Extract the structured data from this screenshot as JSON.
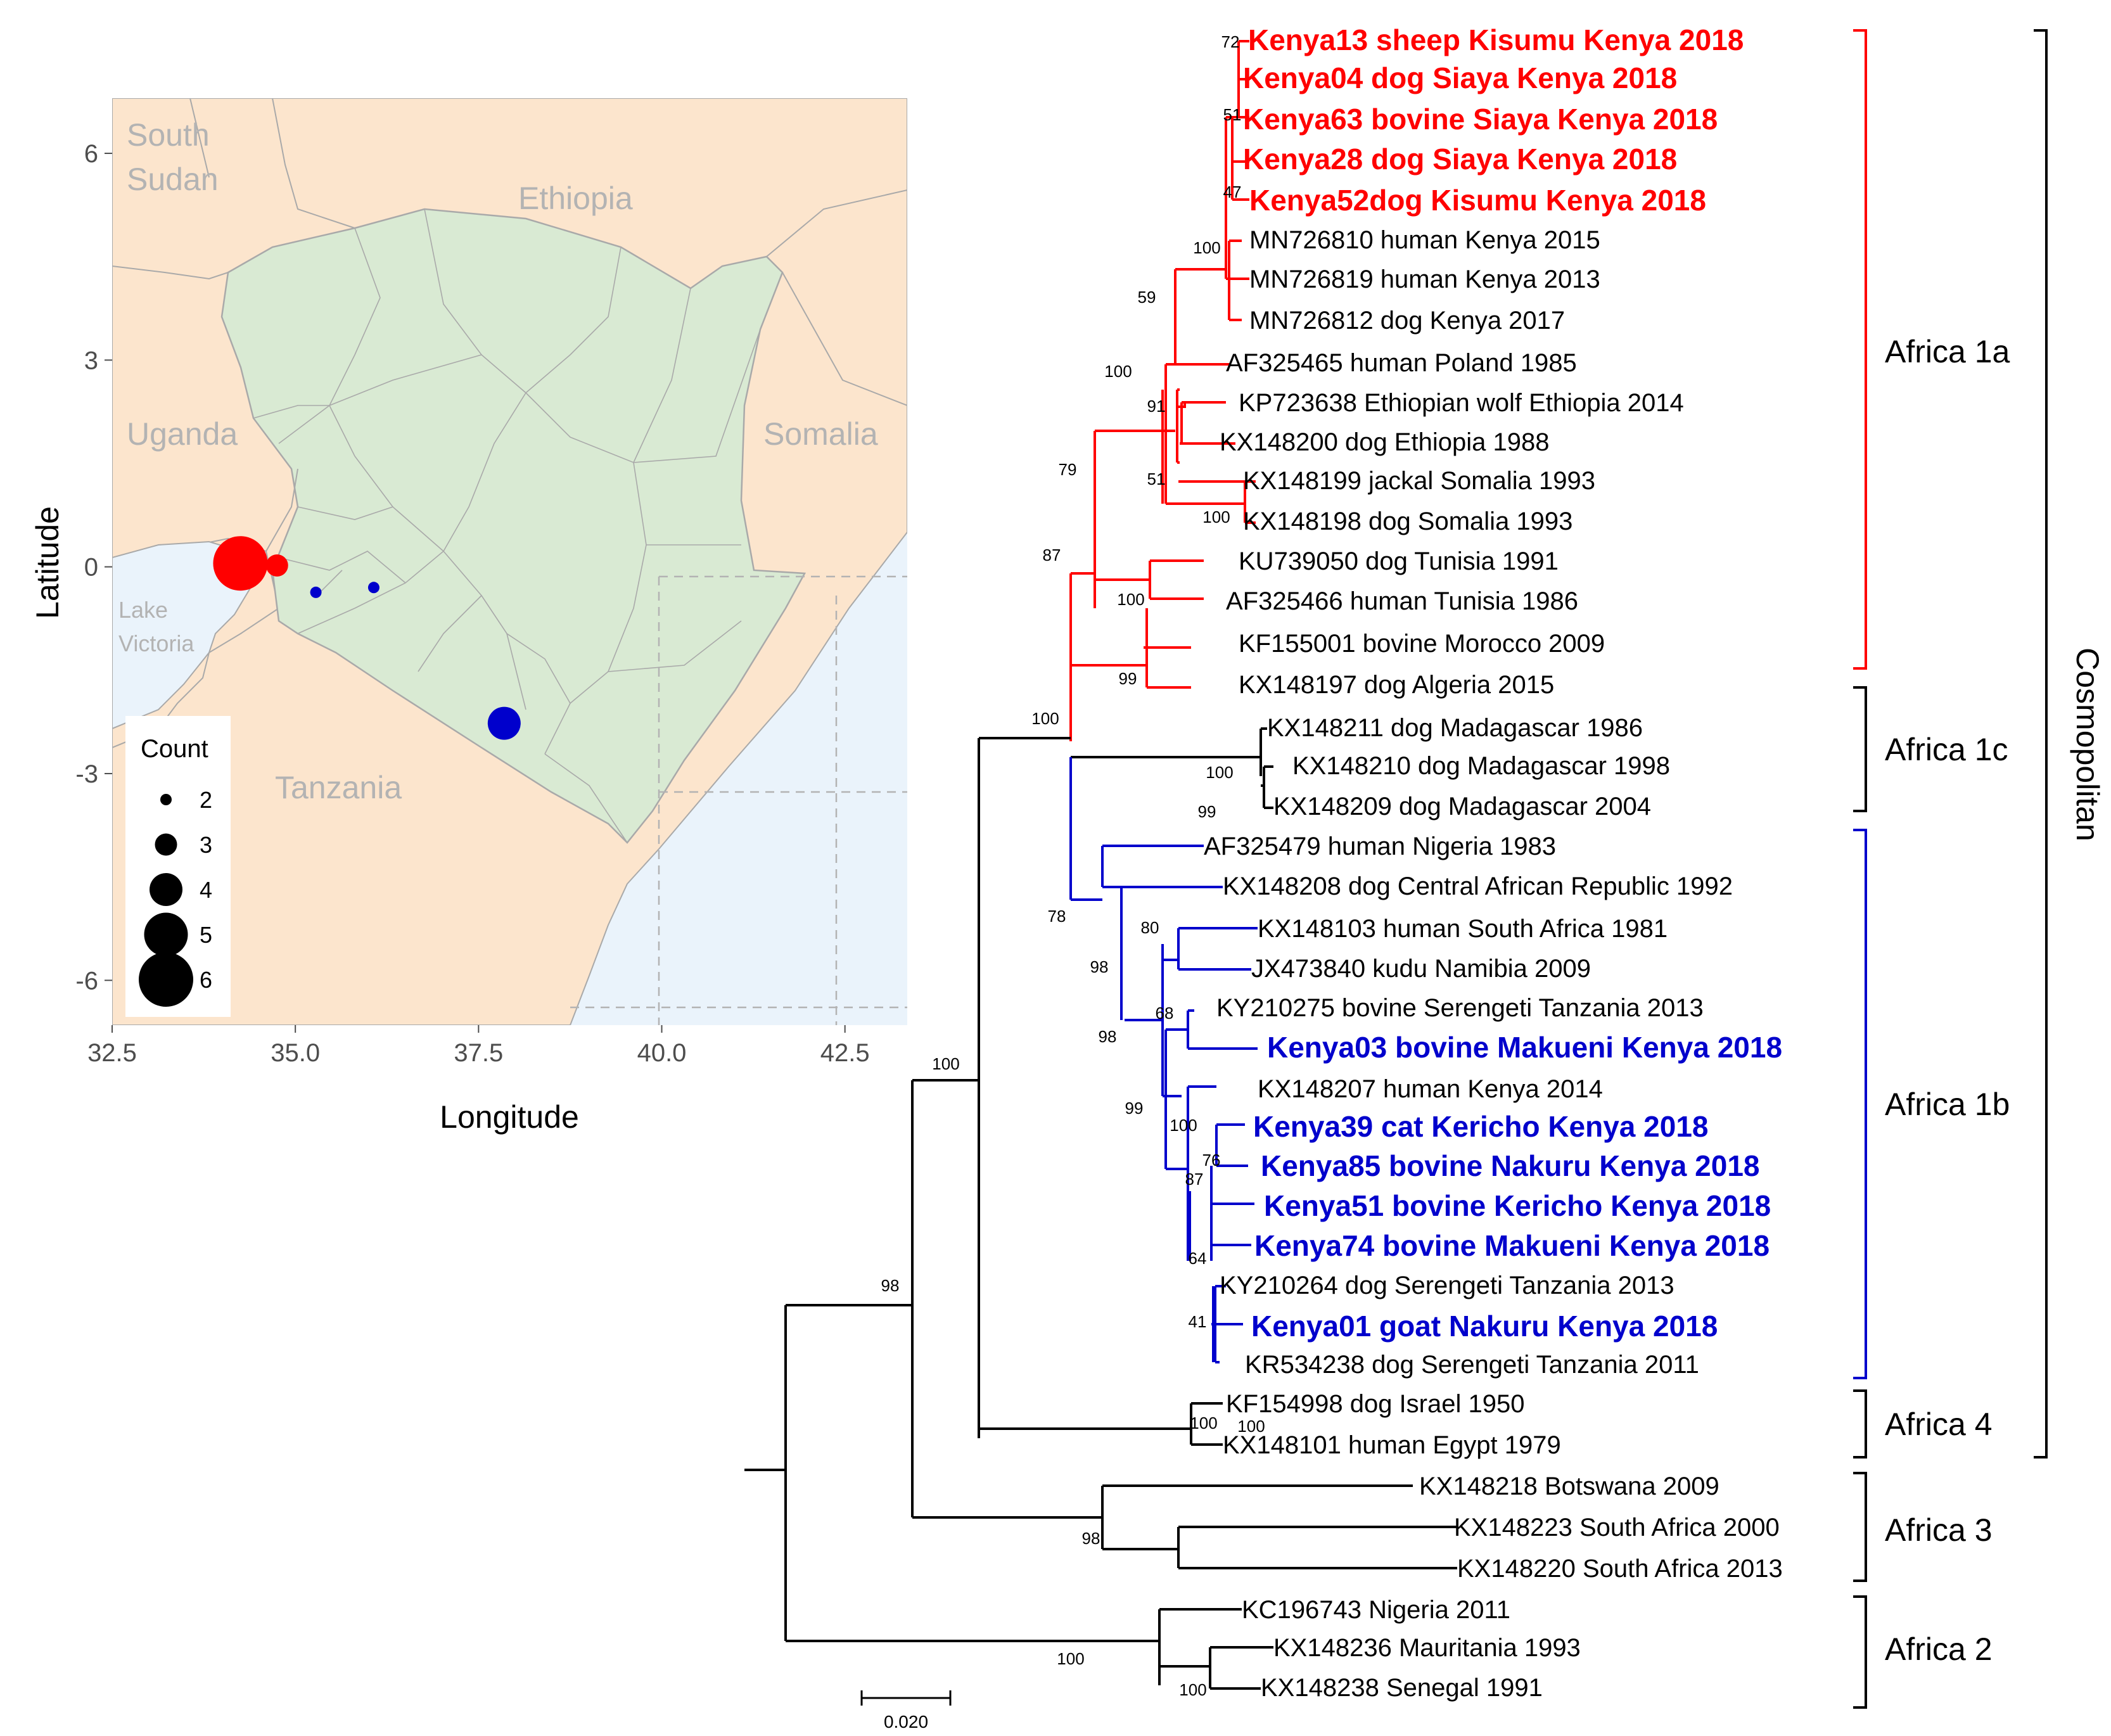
{
  "colors": {
    "africa_1a": "#ff0000",
    "africa_1b": "#0000cc",
    "other": "#000000",
    "kenya_fill": "#d9ead3",
    "neighbor_fill": "#fce5cd",
    "water_fill": "#eaf3fb"
  },
  "map": {
    "x_axis_title": "Longitude",
    "y_axis_title": "Latitude",
    "x_ticks": [
      "32.5",
      "35.0",
      "37.5",
      "40.0",
      "42.5"
    ],
    "y_ticks": [
      "6",
      "3",
      "0",
      "-3",
      "-6"
    ],
    "countries": {
      "south_sudan_line1": "South",
      "south_sudan_line2": "Sudan",
      "ethiopia": "Ethiopia",
      "uganda": "Uganda",
      "somalia": "Somalia",
      "tanzania": "Tanzania",
      "lake_line1": "Lake",
      "lake_line2": "Victoria"
    },
    "legend": {
      "title": "Count",
      "items": [
        "2",
        "3",
        "4",
        "5",
        "6"
      ]
    },
    "points": [
      {
        "lon": 34.25,
        "lat": 0.05,
        "count": 6,
        "color": "#ff0000"
      },
      {
        "lon": 34.75,
        "lat": 0.02,
        "count": 3,
        "color": "#ff0000"
      },
      {
        "lon": 35.28,
        "lat": -0.37,
        "count": 2,
        "color": "#0000cc"
      },
      {
        "lon": 36.07,
        "lat": -0.3,
        "count": 2,
        "color": "#0000cc"
      },
      {
        "lon": 37.85,
        "lat": -2.27,
        "count": 4,
        "color": "#0000cc"
      }
    ]
  },
  "tree": {
    "leaves": [
      {
        "label": "Kenya13 sheep Kisumu Kenya 2018",
        "bold": true,
        "clade": "1a"
      },
      {
        "label": "Kenya04 dog Siaya Kenya 2018",
        "bold": true,
        "clade": "1a"
      },
      {
        "label": "Kenya63 bovine Siaya Kenya 2018",
        "bold": true,
        "clade": "1a"
      },
      {
        "label": "Kenya28 dog Siaya Kenya 2018",
        "bold": true,
        "clade": "1a"
      },
      {
        "label": "Kenya52dog Kisumu Kenya 2018",
        "bold": true,
        "clade": "1a"
      },
      {
        "label": "MN726810 human Kenya 2015",
        "bold": false,
        "clade": "1a"
      },
      {
        "label": "MN726819 human Kenya 2013",
        "bold": false,
        "clade": "1a"
      },
      {
        "label": "MN726812 dog Kenya 2017",
        "bold": false,
        "clade": "1a"
      },
      {
        "label": "AF325465 human Poland 1985",
        "bold": false,
        "clade": "1a"
      },
      {
        "label": "KP723638 Ethiopian wolf Ethiopia 2014",
        "bold": false,
        "clade": "1a"
      },
      {
        "label": "KX148200 dog Ethiopia 1988",
        "bold": false,
        "clade": "1a"
      },
      {
        "label": "KX148199 jackal Somalia 1993",
        "bold": false,
        "clade": "1a"
      },
      {
        "label": "KX148198 dog Somalia 1993",
        "bold": false,
        "clade": "1a"
      },
      {
        "label": "KU739050 dog Tunisia 1991",
        "bold": false,
        "clade": "1a"
      },
      {
        "label": "AF325466 human Tunisia 1986",
        "bold": false,
        "clade": "1a"
      },
      {
        "label": "KF155001 bovine Morocco 2009",
        "bold": false,
        "clade": "1a"
      },
      {
        "label": "KX148197 dog Algeria 2015",
        "bold": false,
        "clade": "1a"
      },
      {
        "label": "KX148211 dog Madagascar 1986",
        "bold": false,
        "clade": "1c"
      },
      {
        "label": "KX148210 dog Madagascar 1998",
        "bold": false,
        "clade": "1c"
      },
      {
        "label": "KX148209 dog Madagascar 2004",
        "bold": false,
        "clade": "1c"
      },
      {
        "label": "AF325479 human Nigeria 1983",
        "bold": false,
        "clade": "1b"
      },
      {
        "label": "KX148208  dog Central African Republic 1992",
        "bold": false,
        "clade": "1b"
      },
      {
        "label": "KX148103 human South Africa 1981",
        "bold": false,
        "clade": "1b"
      },
      {
        "label": "JX473840 kudu Namibia 2009",
        "bold": false,
        "clade": "1b"
      },
      {
        "label": "KY210275  bovine Serengeti Tanzania 2013",
        "bold": false,
        "clade": "1b"
      },
      {
        "label": "Kenya03 bovine Makueni Kenya 2018",
        "bold": true,
        "clade": "1b"
      },
      {
        "label": "KX148207 human Kenya 2014",
        "bold": false,
        "clade": "1b"
      },
      {
        "label": "Kenya39 cat Kericho Kenya 2018",
        "bold": true,
        "clade": "1b"
      },
      {
        "label": "Kenya85 bovine Nakuru Kenya 2018",
        "bold": true,
        "clade": "1b"
      },
      {
        "label": "Kenya51 bovine Kericho Kenya 2018",
        "bold": true,
        "clade": "1b"
      },
      {
        "label": "Kenya74 bovine Makueni Kenya 2018",
        "bold": true,
        "clade": "1b"
      },
      {
        "label": "KY210264 dog Serengeti Tanzania 2013",
        "bold": false,
        "clade": "1b"
      },
      {
        "label": "Kenya01 goat Nakuru Kenya 2018",
        "bold": true,
        "clade": "1b"
      },
      {
        "label": "KR534238 dog Serengeti Tanzania 2011",
        "bold": false,
        "clade": "1b"
      },
      {
        "label": "KF154998 dog Israel 1950",
        "bold": false,
        "clade": "4"
      },
      {
        "label": "KX148101 human Egypt 1979",
        "bold": false,
        "clade": "4"
      },
      {
        "label": "KX148218 Botswana 2009",
        "bold": false,
        "clade": "3"
      },
      {
        "label": "KX148223 South Africa 2000",
        "bold": false,
        "clade": "3"
      },
      {
        "label": "KX148220 South Africa 2013",
        "bold": false,
        "clade": "3"
      },
      {
        "label": "KC196743 Nigeria 2011",
        "bold": false,
        "clade": "2"
      },
      {
        "label": "KX148236 Mauritania 1993",
        "bold": false,
        "clade": "2"
      },
      {
        "label": "KX148238 Senegal 1991",
        "bold": false,
        "clade": "2"
      }
    ],
    "bootstrap_values": [
      "72",
      "51",
      "47",
      "100",
      "59",
      "100",
      "91",
      "51",
      "100",
      "79",
      "87",
      "100",
      "99",
      "100",
      "100",
      "99",
      "78",
      "80",
      "98",
      "68",
      "98",
      "99",
      "100",
      "76",
      "87",
      "64",
      "41",
      "100",
      "100",
      "98",
      "100",
      "98",
      "100",
      "100"
    ],
    "clades": [
      "Africa 1a",
      "Africa 1c",
      "Africa 1b",
      "Africa 4",
      "Africa 3",
      "Africa 2"
    ],
    "lineage": "Cosmopolitan",
    "scale_label": "0.020"
  }
}
